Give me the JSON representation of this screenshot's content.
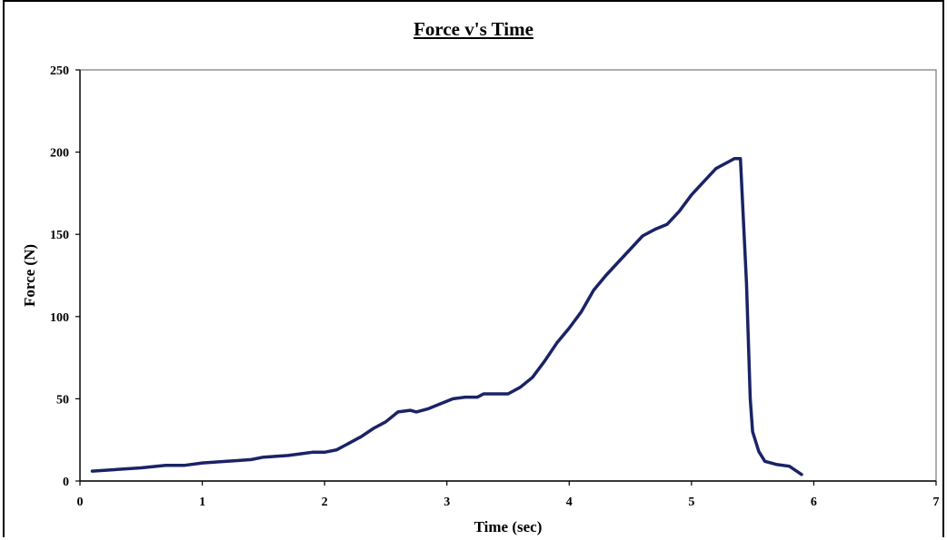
{
  "chart_data": {
    "type": "line",
    "title": "Force v's Time",
    "xlabel": "Time (sec)",
    "ylabel": "Force (N)",
    "xlim": [
      0,
      7
    ],
    "ylim": [
      0,
      250
    ],
    "xticks": [
      0,
      1,
      2,
      3,
      4,
      5,
      6,
      7
    ],
    "yticks": [
      0,
      50,
      100,
      150,
      200,
      250
    ],
    "grid": false,
    "legend": "none",
    "line_color": "#1a2366",
    "series": [
      {
        "x": [
          0.1,
          0.3,
          0.5,
          0.7,
          0.85,
          1.0,
          1.2,
          1.4,
          1.5,
          1.7,
          1.8,
          1.9,
          2.0,
          2.1,
          2.2,
          2.3,
          2.4,
          2.5,
          2.6,
          2.7,
          2.75,
          2.85,
          2.95,
          3.05,
          3.15,
          3.25,
          3.3,
          3.4,
          3.5,
          3.6,
          3.7,
          3.8,
          3.9,
          4.0,
          4.1,
          4.2,
          4.3,
          4.4,
          4.5,
          4.6,
          4.7,
          4.8,
          4.9,
          5.0,
          5.1,
          5.2,
          5.3,
          5.35,
          5.4,
          5.45,
          5.48,
          5.5,
          5.55,
          5.6,
          5.7,
          5.8,
          5.9
        ],
        "y": [
          6,
          7,
          8,
          9.5,
          9.5,
          11,
          12,
          13,
          14.5,
          15.5,
          16.5,
          17.5,
          17.5,
          19,
          23,
          27,
          32,
          36,
          42,
          43,
          42,
          44,
          47,
          50,
          51,
          51,
          53,
          53,
          53,
          57,
          63,
          73,
          84,
          93,
          103,
          116,
          125,
          133,
          141,
          149,
          153,
          156,
          164,
          174,
          182,
          190,
          194,
          196,
          196,
          120,
          50,
          30,
          18,
          12,
          10,
          9,
          4
        ]
      }
    ]
  }
}
